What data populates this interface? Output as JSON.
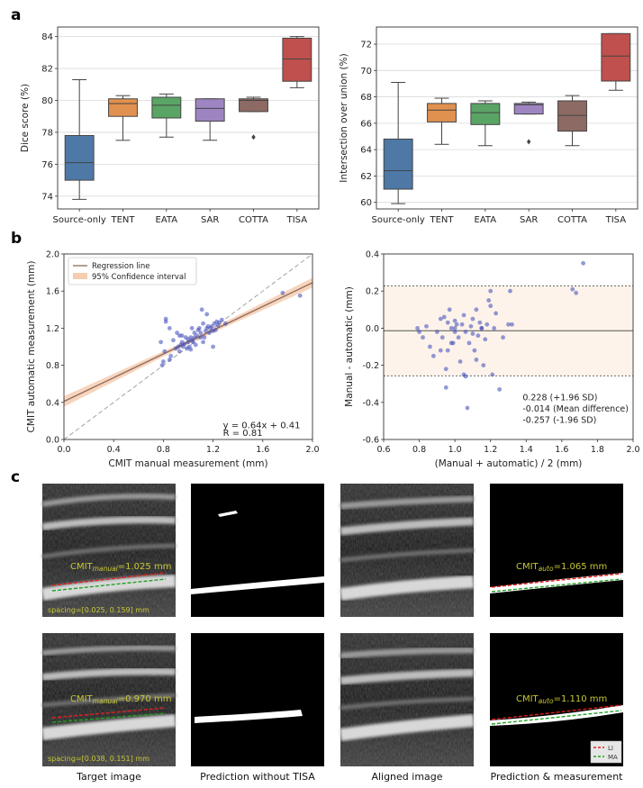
{
  "panel_letters": {
    "a": "a",
    "b": "b",
    "c": "c"
  },
  "colors": {
    "box": [
      "#4e79a7",
      "#e0914f",
      "#5aa465",
      "#9e85c2",
      "#8d6a63",
      "#c0504d"
    ],
    "scatter": "#3a47b8",
    "regression": "#8a6a5a",
    "ci": "#f6cdb0",
    "loa_band": "#fdf3ea",
    "text_overlay": "#c8c832",
    "li": "#e02020",
    "ma": "#22a022"
  },
  "chart_data": [
    {
      "type": "box",
      "ylabel": "Dice score (%)",
      "categories": [
        "Source-only",
        "TENT",
        "EATA",
        "SAR",
        "COTTA",
        "TISA"
      ],
      "ylim": [
        73.2,
        84.6
      ],
      "yticks": [
        74,
        76,
        78,
        80,
        82,
        84
      ],
      "grid": "horizontal",
      "boxes": [
        {
          "whislo": 73.8,
          "q1": 75.0,
          "med": 76.1,
          "q3": 77.8,
          "whishi": 81.3,
          "fliers": []
        },
        {
          "whislo": 77.5,
          "q1": 79.0,
          "med": 79.8,
          "q3": 80.1,
          "whishi": 80.3,
          "fliers": []
        },
        {
          "whislo": 77.7,
          "q1": 78.9,
          "med": 79.7,
          "q3": 80.2,
          "whishi": 80.4,
          "fliers": []
        },
        {
          "whislo": 77.5,
          "q1": 78.7,
          "med": 79.5,
          "q3": 80.1,
          "whishi": 80.1,
          "fliers": []
        },
        {
          "whislo": 79.3,
          "q1": 79.3,
          "med": 80.0,
          "q3": 80.1,
          "whishi": 80.2,
          "fliers": [
            77.7
          ]
        },
        {
          "whislo": 80.8,
          "q1": 81.2,
          "med": 82.6,
          "q3": 83.9,
          "whishi": 84.0,
          "fliers": []
        }
      ]
    },
    {
      "type": "box",
      "ylabel": "Intersection over union (%)",
      "categories": [
        "Source-only",
        "TENT",
        "EATA",
        "SAR",
        "COTTA",
        "TISA"
      ],
      "ylim": [
        59.5,
        73.3
      ],
      "yticks": [
        60,
        62,
        64,
        66,
        68,
        70,
        72
      ],
      "grid": "horizontal",
      "boxes": [
        {
          "whislo": 59.9,
          "q1": 61.0,
          "med": 62.4,
          "q3": 64.8,
          "whishi": 69.1,
          "fliers": []
        },
        {
          "whislo": 64.4,
          "q1": 66.1,
          "med": 67.0,
          "q3": 67.5,
          "whishi": 67.9,
          "fliers": []
        },
        {
          "whislo": 64.3,
          "q1": 65.9,
          "med": 66.8,
          "q3": 67.5,
          "whishi": 67.7,
          "fliers": []
        },
        {
          "whislo": 66.7,
          "q1": 66.7,
          "med": 67.4,
          "q3": 67.5,
          "whishi": 67.6,
          "fliers": [
            64.6
          ]
        },
        {
          "whislo": 64.3,
          "q1": 65.4,
          "med": 66.6,
          "q3": 67.7,
          "whishi": 68.1,
          "fliers": []
        },
        {
          "whislo": 68.5,
          "q1": 69.2,
          "med": 71.1,
          "q3": 72.8,
          "whishi": 72.8,
          "fliers": []
        }
      ]
    },
    {
      "type": "scatter",
      "xlabel": "CMIT manual measurement (mm)",
      "ylabel": "CMIT automatic measurement (mm)",
      "xlim": [
        0.0,
        2.0
      ],
      "ylim": [
        0.0,
        2.0
      ],
      "xticks": [
        "0.0",
        "0.4",
        "0.8",
        "1.2",
        "1.6",
        "2.0"
      ],
      "yticks": [
        "0.0",
        "0.4",
        "0.8",
        "1.2",
        "1.6",
        "2.0"
      ],
      "legend": [
        "Regression line",
        "95% Confidence interval"
      ],
      "legend_position": "top-left",
      "annotations": [
        "y = 0.64x + 0.41",
        "R = 0.81"
      ],
      "regression": {
        "slope": 0.64,
        "intercept": 0.41
      },
      "x": [
        0.79,
        0.8,
        0.81,
        0.82,
        0.85,
        0.86,
        0.88,
        0.9,
        0.91,
        0.92,
        0.93,
        0.94,
        0.95,
        0.95,
        0.96,
        0.97,
        0.98,
        0.99,
        1.0,
        1.0,
        1.01,
        1.02,
        1.03,
        1.03,
        1.04,
        1.05,
        1.05,
        1.06,
        1.07,
        1.08,
        1.09,
        1.1,
        1.1,
        1.11,
        1.12,
        1.12,
        1.13,
        1.14,
        1.15,
        1.16,
        1.17,
        1.18,
        1.19,
        1.2,
        1.21,
        1.22,
        1.23,
        1.24,
        1.25,
        1.27,
        1.3,
        0.78,
        0.93,
        0.85,
        1.02,
        1.15,
        1.2,
        1.76,
        1.9,
        0.82
      ],
      "y": [
        0.8,
        0.84,
        0.95,
        1.27,
        0.86,
        0.9,
        1.07,
        0.98,
        1.15,
        1.0,
        0.95,
        1.02,
        1.05,
        1.12,
        1.0,
        1.03,
        1.1,
        0.98,
        1.05,
        1.08,
        1.0,
        1.1,
        1.07,
        1.2,
        1.05,
        1.1,
        1.15,
        1.02,
        1.12,
        1.18,
        1.2,
        1.1,
        1.15,
        1.4,
        1.05,
        1.25,
        1.1,
        1.17,
        1.2,
        1.22,
        1.15,
        1.2,
        1.22,
        1.17,
        1.25,
        1.18,
        1.27,
        1.23,
        1.26,
        1.29,
        1.25,
        1.05,
        1.12,
        1.2,
        0.97,
        1.35,
        1.0,
        1.58,
        1.55,
        1.3
      ]
    },
    {
      "type": "scatter",
      "xlabel": "(Manual + automatic) / 2 (mm)",
      "ylabel": "Manual - automatic (mm)",
      "xlim": [
        0.6,
        2.0
      ],
      "ylim": [
        -0.6,
        0.4
      ],
      "xticks": [
        "0.6",
        "0.8",
        "1.0",
        "1.2",
        "1.4",
        "1.6",
        "1.8",
        "2.0"
      ],
      "yticks": [
        "-0.6",
        "-0.4",
        "-0.2",
        "0.0",
        "0.2",
        "0.4"
      ],
      "lines": {
        "upper": 0.228,
        "mean": -0.014,
        "lower": -0.257
      },
      "annotations": [
        "0.228 (+1.96 SD)",
        "-0.014 (Mean difference)",
        "-0.257 (-1.96 SD)"
      ],
      "x": [
        0.79,
        0.8,
        0.82,
        0.84,
        0.86,
        0.88,
        0.9,
        0.92,
        0.93,
        0.94,
        0.95,
        0.96,
        0.96,
        0.97,
        0.98,
        0.99,
        1.0,
        1.0,
        1.01,
        1.02,
        1.03,
        1.04,
        1.05,
        1.05,
        1.06,
        1.07,
        1.08,
        1.09,
        1.1,
        1.1,
        1.11,
        1.12,
        1.13,
        1.14,
        1.15,
        1.16,
        1.17,
        1.18,
        1.19,
        1.2,
        1.21,
        1.22,
        1.23,
        1.25,
        1.27,
        1.3,
        1.31,
        1.32,
        0.95,
        1.0,
        0.92,
        1.06,
        1.12,
        1.2,
        1.68,
        1.72,
        1.66,
        0.98,
        1.15
      ],
      "y": [
        0.0,
        -0.02,
        -0.05,
        0.01,
        -0.1,
        -0.15,
        -0.02,
        0.05,
        -0.05,
        0.06,
        -0.32,
        0.03,
        -0.12,
        0.1,
        0.0,
        -0.08,
        -0.02,
        0.0,
        0.02,
        -0.05,
        -0.18,
        0.02,
        -0.25,
        0.07,
        -0.02,
        -0.43,
        -0.08,
        0.01,
        0.05,
        -0.03,
        -0.12,
        0.1,
        -0.04,
        0.03,
        0.0,
        -0.2,
        -0.06,
        0.02,
        0.15,
        0.2,
        -0.25,
        0.0,
        0.08,
        -0.33,
        -0.05,
        0.02,
        0.2,
        0.02,
        -0.22,
        0.04,
        -0.12,
        -0.26,
        -0.17,
        0.12,
        0.19,
        0.35,
        0.21,
        -0.08,
        0.0
      ]
    }
  ],
  "panel_c": {
    "captions": [
      "Target image",
      "Prediction without TISA",
      "Aligned image",
      "Prediction & measurement"
    ],
    "rows": [
      {
        "manual_label": "CMIT",
        "manual_sub": "manual",
        "manual_value": "=1.025 mm",
        "spacing": "spacing=[0.025, 0.159] mm",
        "auto_label": "CMIT",
        "auto_sub": "auto",
        "auto_value": "=1.065 mm"
      },
      {
        "manual_label": "CMIT",
        "manual_sub": "manual",
        "manual_value": "=0.970 mm",
        "spacing": "spacing=[0.038, 0.151] mm",
        "auto_label": "CMIT",
        "auto_sub": "auto",
        "auto_value": "=1.110 mm"
      }
    ],
    "legend": [
      "LI",
      "MA"
    ]
  }
}
